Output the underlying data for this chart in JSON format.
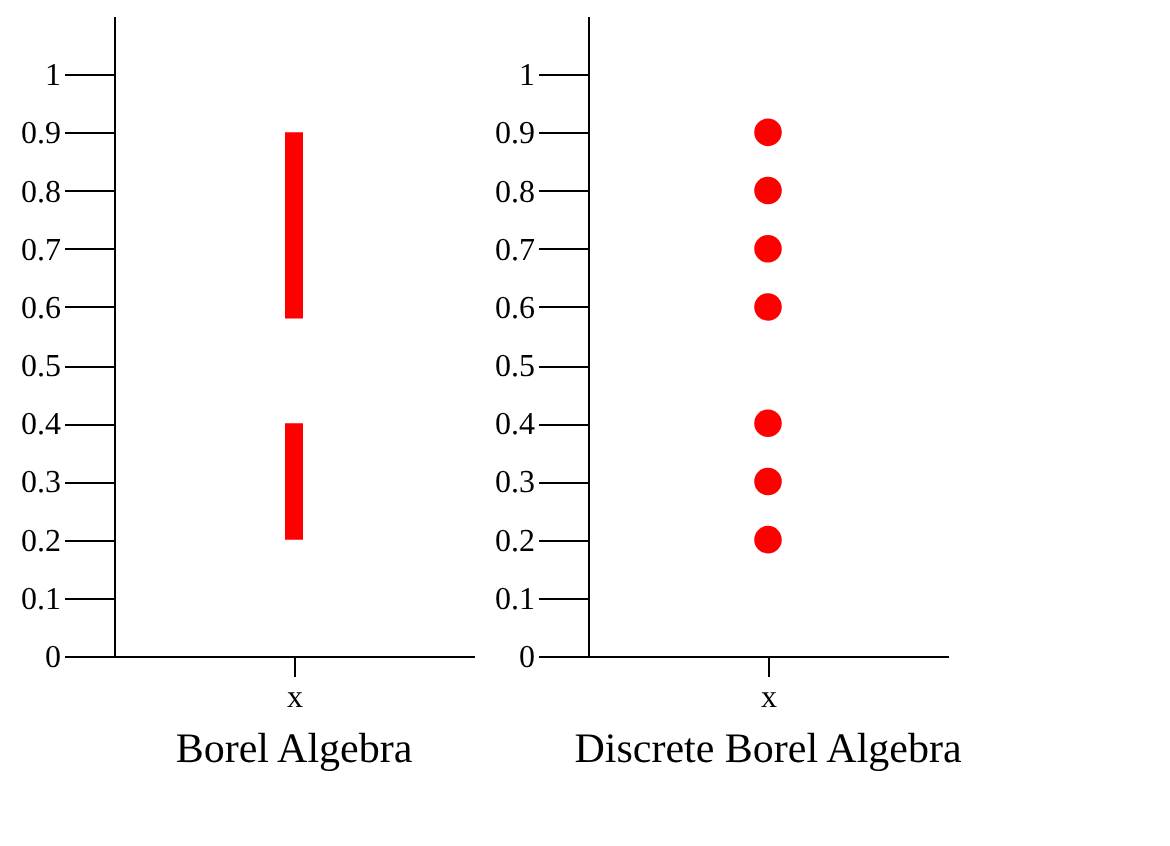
{
  "chart_data": [
    {
      "type": "bar",
      "title": "Borel Algebra",
      "categories": [
        "x"
      ],
      "series": [
        {
          "color": "#ff0000",
          "values": [
            0.2
          ],
          "base": [
            0.2
          ]
        },
        {
          "color": "#ff0000",
          "values": [
            0.32
          ],
          "base": [
            0.58
          ]
        }
      ],
      "ylim": [
        0,
        1.1
      ],
      "yticks": [
        0,
        0.1,
        0.2,
        0.3,
        0.4,
        0.5,
        0.6,
        0.7,
        0.8,
        0.9,
        1
      ],
      "grid": false,
      "legend": false
    },
    {
      "type": "scatter",
      "title": "Discrete Borel Algebra",
      "categories": [
        "x"
      ],
      "series": [
        {
          "color": "#ff0000",
          "x": [
            "x",
            "x",
            "x",
            "x",
            "x",
            "x",
            "x"
          ],
          "values": [
            0.2,
            0.3,
            0.4,
            0.6,
            0.7,
            0.8,
            0.9
          ]
        }
      ],
      "ylim": [
        0,
        1.1
      ],
      "yticks": [
        0,
        0.1,
        0.2,
        0.3,
        0.4,
        0.5,
        0.6,
        0.7,
        0.8,
        0.9,
        1
      ],
      "grid": false,
      "legend": false,
      "marker": "circle"
    }
  ]
}
